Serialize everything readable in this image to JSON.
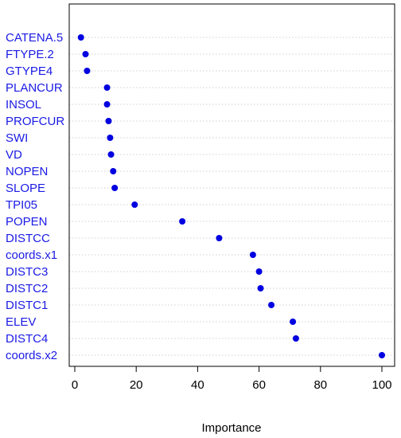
{
  "chart_data": {
    "type": "scatter",
    "title": "",
    "xlabel": "Importance",
    "ylabel": "",
    "xlim": [
      -2,
      103
    ],
    "xticks": [
      0,
      20,
      40,
      60,
      80,
      100
    ],
    "grid": "horizontal dotted",
    "point_color": "#0000e0",
    "label_color": "#1a1ae6",
    "categories": [
      "CATENA.5",
      "FTYPE.2",
      "GTYPE4",
      "PLANCUR",
      "INSOL",
      "PROFCUR",
      "SWI",
      "VD",
      "NOPEN",
      "SLOPE",
      "TPI05",
      "POPEN",
      "DISTCC",
      "coords.x1",
      "DISTC3",
      "DISTC2",
      "DISTC1",
      "ELEV",
      "DISTC4",
      "coords.x2"
    ],
    "values": [
      2.0,
      3.5,
      4.0,
      10.5,
      10.5,
      11.0,
      11.5,
      11.8,
      12.5,
      13.0,
      19.5,
      35.0,
      47.0,
      58.0,
      60.0,
      60.5,
      64.0,
      71.0,
      72.0,
      100.0
    ]
  }
}
